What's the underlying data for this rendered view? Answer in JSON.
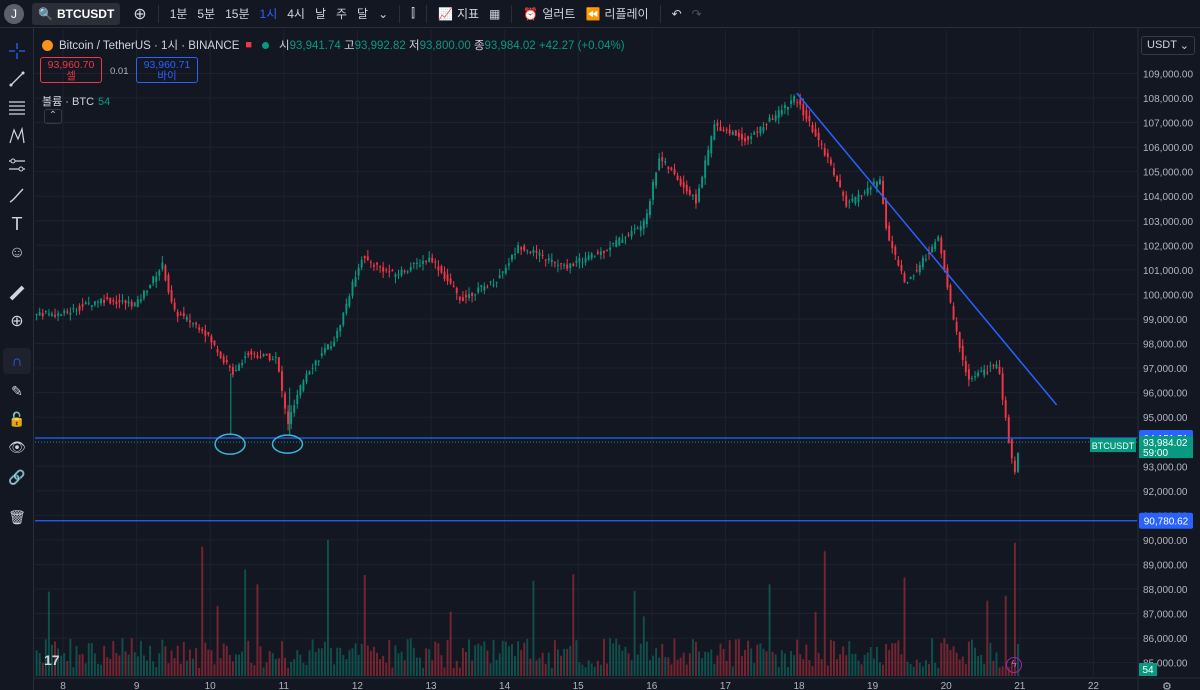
{
  "topbar": {
    "avatar": "J",
    "symbol": "BTCUSDT",
    "intervals": [
      "1분",
      "5분",
      "15분",
      "1시",
      "4시",
      "날",
      "주",
      "달"
    ],
    "active_interval": "1시",
    "indicators_label": "지표",
    "alert_label": "얼러트",
    "replay_label": "리플레이"
  },
  "legend": {
    "title": "Bitcoin / TetherUS · 1시 · BINANCE",
    "open_label": "시",
    "open": "93,941.74",
    "high_label": "고",
    "high": "93,992.82",
    "low_label": "저",
    "low": "93,800.00",
    "close_label": "종",
    "close": "93,984.02",
    "change": "+42.27 (+0.04%)"
  },
  "trade": {
    "sell_price": "93,960.70",
    "sell_label": "셀",
    "spread": "0.01",
    "buy_price": "93,960.71",
    "buy_label": "바이"
  },
  "volume": {
    "label": "볼륨 · BTC",
    "value": "54"
  },
  "currency": "USDT",
  "price_axis": {
    "ticks": [
      "109,000.00",
      "108,000.00",
      "107,000.00",
      "106,000.00",
      "105,000.00",
      "104,000.00",
      "103,000.00",
      "102,000.00",
      "101,000.00",
      "100,000.00",
      "99,000.00",
      "98,000.00",
      "97,000.00",
      "96,000.00",
      "95,000.00",
      "93,000.00",
      "92,000.00",
      "91,000.00",
      "90,000.00",
      "89,000.00",
      "88,000.00",
      "87,000.00",
      "86,000.00",
      "85,000.00"
    ],
    "hline_upper": "94,151.51",
    "hline_lower": "90,780.62",
    "last_symbol": "BTCUSDT",
    "last_price": "93,984.02",
    "countdown": "59:00",
    "volume_badge": "54"
  },
  "time_axis": {
    "ticks": [
      "8",
      "9",
      "10",
      "11",
      "12",
      "13",
      "14",
      "15",
      "16",
      "17",
      "18",
      "19",
      "20",
      "21",
      "22"
    ]
  },
  "colors": {
    "up": "#089981",
    "down": "#f23645",
    "line": "#2962ff",
    "bg": "#131722"
  },
  "chart_data": {
    "type": "candlestick",
    "symbol": "BTCUSDT",
    "interval": "1시",
    "x_unit": "day",
    "anchors": [
      {
        "x": 8.0,
        "price": 99200
      },
      {
        "x": 8.5,
        "price": 99800
      },
      {
        "x": 9.0,
        "price": 99600
      },
      {
        "x": 9.35,
        "price": 101200
      },
      {
        "x": 9.5,
        "price": 99300
      },
      {
        "x": 9.9,
        "price": 98600
      },
      {
        "x": 10.3,
        "price": 96800
      },
      {
        "x": 10.5,
        "price": 97600
      },
      {
        "x": 10.9,
        "price": 97400
      },
      {
        "x": 11.05,
        "price": 94700
      },
      {
        "x": 11.3,
        "price": 96800
      },
      {
        "x": 11.7,
        "price": 98200
      },
      {
        "x": 12.05,
        "price": 101500
      },
      {
        "x": 12.5,
        "price": 100800
      },
      {
        "x": 13.0,
        "price": 101500
      },
      {
        "x": 13.4,
        "price": 99800
      },
      {
        "x": 13.9,
        "price": 100600
      },
      {
        "x": 14.2,
        "price": 102000
      },
      {
        "x": 14.8,
        "price": 101100
      },
      {
        "x": 15.3,
        "price": 101700
      },
      {
        "x": 15.9,
        "price": 102900
      },
      {
        "x": 16.1,
        "price": 105600
      },
      {
        "x": 16.6,
        "price": 103800
      },
      {
        "x": 16.85,
        "price": 106900
      },
      {
        "x": 17.3,
        "price": 106300
      },
      {
        "x": 17.95,
        "price": 108000
      },
      {
        "x": 18.4,
        "price": 105500
      },
      {
        "x": 18.65,
        "price": 103600
      },
      {
        "x": 19.1,
        "price": 104700
      },
      {
        "x": 19.2,
        "price": 102400
      },
      {
        "x": 19.45,
        "price": 100400
      },
      {
        "x": 19.9,
        "price": 102300
      },
      {
        "x": 20.1,
        "price": 98900
      },
      {
        "x": 20.3,
        "price": 96500
      },
      {
        "x": 20.7,
        "price": 97200
      },
      {
        "x": 20.85,
        "price": 94000
      },
      {
        "x": 20.93,
        "price": 92700
      },
      {
        "x": 21.0,
        "price": 93984
      }
    ],
    "trendline": {
      "x1": 17.97,
      "y1": 108200,
      "x2": 21.5,
      "y2": 95500
    },
    "horizontal_levels": [
      94151.51,
      90780.62
    ],
    "x_ticks": [
      8,
      9,
      10,
      11,
      12,
      13,
      14,
      15,
      16,
      17,
      18,
      19,
      20,
      21,
      22
    ],
    "y_range": [
      84600,
      109800
    ],
    "volume_last": 54
  }
}
